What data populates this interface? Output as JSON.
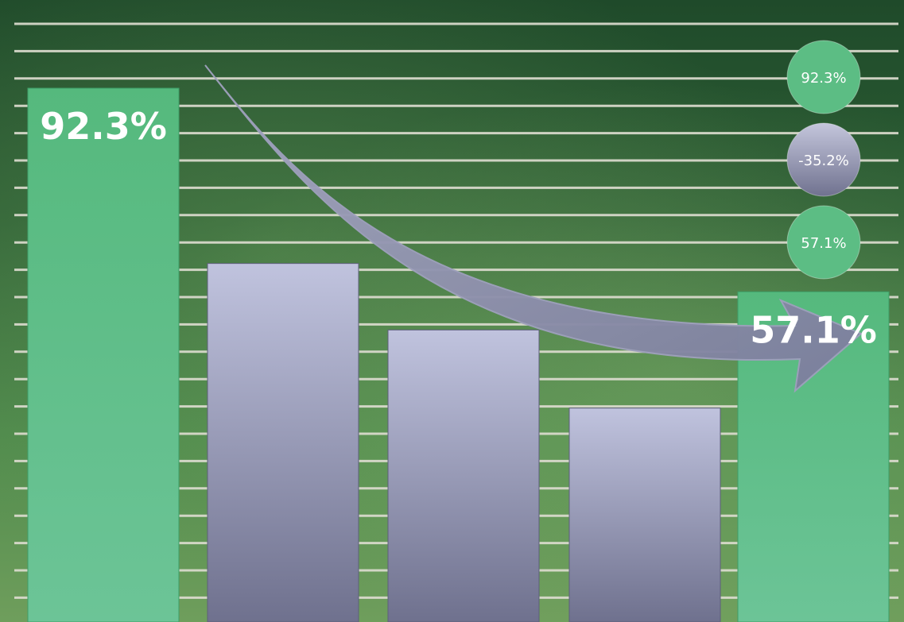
{
  "chart_data": {
    "type": "bar",
    "categories": [
      "",
      "",
      "",
      "",
      ""
    ],
    "values": [
      92.3,
      62.0,
      50.5,
      37.0,
      57.1
    ],
    "bar_labels": [
      "92.3%",
      "",
      "",
      "",
      "57.1%"
    ],
    "highlighted": [
      true,
      false,
      false,
      false,
      true
    ],
    "ylim": [
      0,
      100
    ],
    "grid": true,
    "legend": "none",
    "annotations": {
      "bubbles": [
        "92.3%",
        "-35.2%",
        "57.1%"
      ],
      "arrow": "decline"
    },
    "colors": {
      "highlight_bar": "#5cc08a",
      "other_bar_top": "#c0c3de",
      "other_bar_bottom": "#70728f",
      "grid": "#dcdccf",
      "bubble_green": "#5cbd84",
      "bubble_gray": "#8e90ad",
      "arrow": "#8587a6"
    }
  }
}
